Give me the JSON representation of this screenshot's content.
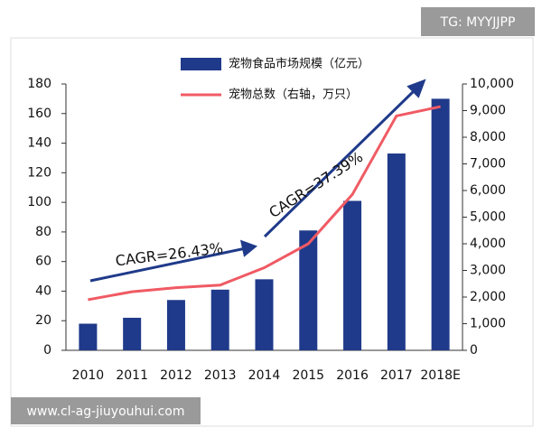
{
  "chart_data": {
    "type": "bar-line",
    "categories": [
      "2010",
      "2011",
      "2012",
      "2013",
      "2014",
      "2015",
      "2016",
      "2017",
      "2018E"
    ],
    "series": [
      {
        "name": "宠物食品市场规模（亿元）",
        "type": "bar",
        "color": "#1f3a8a",
        "values": [
          18,
          22,
          34,
          41,
          48,
          81,
          101,
          133,
          170
        ]
      },
      {
        "name": "宠物总数（右轴，万只）",
        "type": "line",
        "axis": "y2",
        "color": "#f05a64",
        "values": [
          1900,
          2200,
          2350,
          2450,
          3100,
          4000,
          5850,
          8800,
          9150
        ]
      }
    ],
    "ylim": [
      0,
      180
    ],
    "yticks": [
      0,
      20,
      40,
      60,
      80,
      100,
      120,
      140,
      160,
      180
    ],
    "y2lim": [
      0,
      10000
    ],
    "y2ticks": [
      0,
      {
        "value": 1000,
        "label": "1,000"
      },
      {
        "value": 2000,
        "label": "2,000"
      },
      {
        "value": 3000,
        "label": "3,000"
      },
      {
        "value": 4000,
        "label": "4,000"
      },
      {
        "value": 5000,
        "label": "5,000"
      },
      {
        "value": 6000,
        "label": "6,000"
      },
      {
        "value": 7000,
        "label": "7,000"
      },
      {
        "value": 8000,
        "label": "8,000"
      },
      {
        "value": 9000,
        "label": "9,000"
      },
      {
        "value": 10000,
        "label": "10,000"
      }
    ],
    "annotations": [
      "CAGR=26.43%",
      "CAGR=37.39%"
    ]
  },
  "watermarks": [
    "TG: MYYJJPP",
    "www.cl-ag-jiuyouhui.com"
  ]
}
